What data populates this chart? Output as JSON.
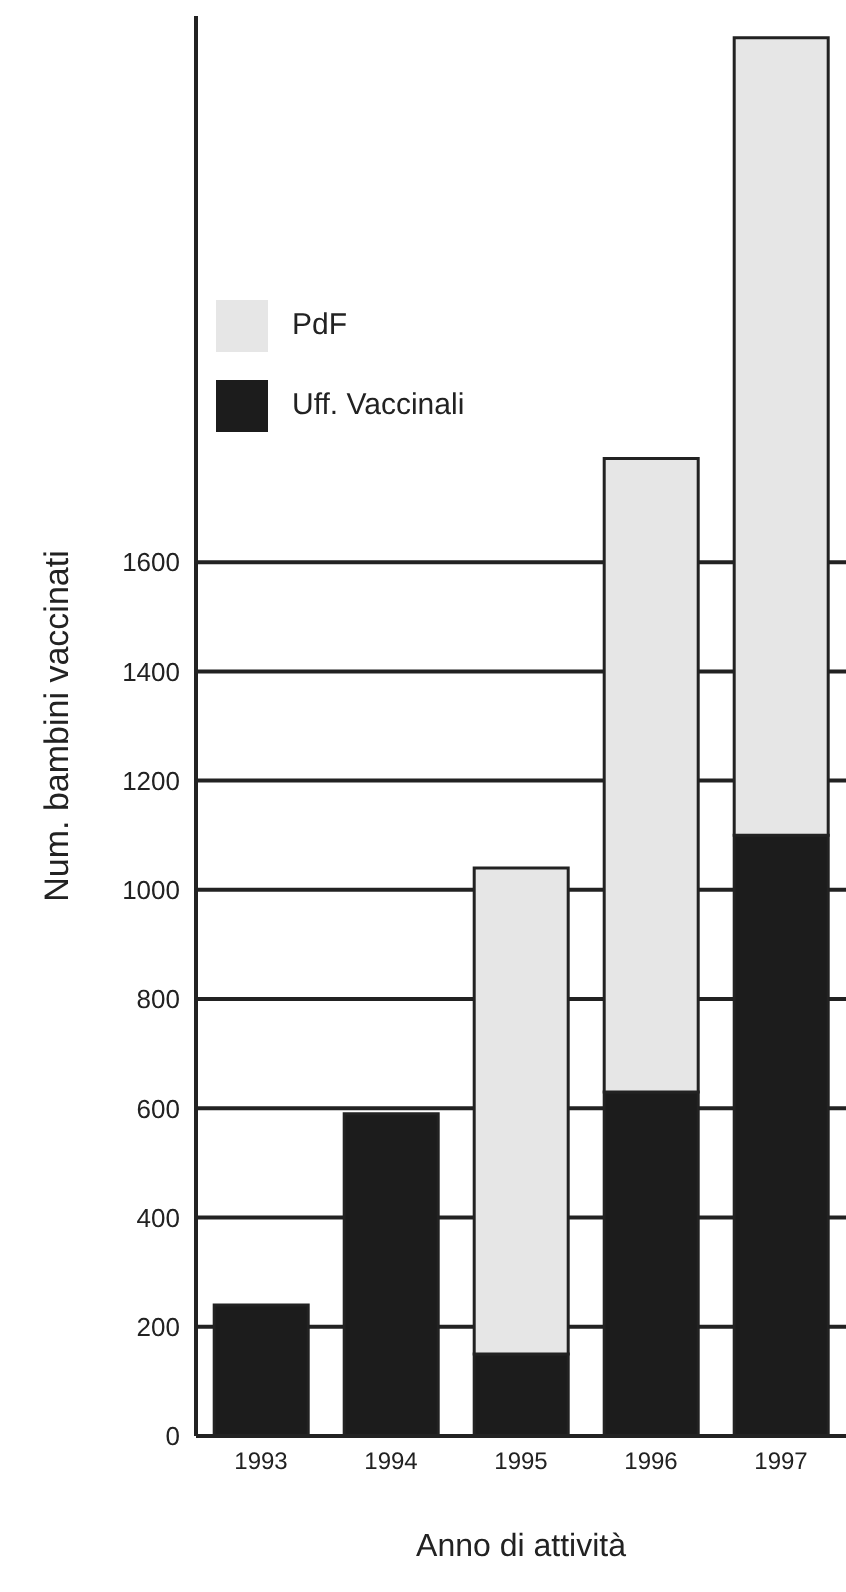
{
  "chart_data": {
    "type": "bar",
    "xlabel": "Anno di attività",
    "ylabel": "Num. bambini vaccinati",
    "categories": [
      "1993",
      "1994",
      "1995",
      "1996",
      "1997"
    ],
    "stacked": true,
    "series": [
      {
        "name": "Uff. Vaccinali",
        "color": "#1c1c1c",
        "values": [
          240,
          590,
          150,
          630,
          1100
        ]
      },
      {
        "name": "PdF",
        "color": "#e6e6e6",
        "values": [
          null,
          null,
          890,
          1160,
          1460
        ]
      }
    ],
    "ylim": [
      0,
      2600
    ],
    "yticks": [
      0,
      200,
      400,
      600,
      800,
      1000,
      1200,
      1400,
      1600
    ],
    "grid": "y",
    "legend": "top left"
  }
}
